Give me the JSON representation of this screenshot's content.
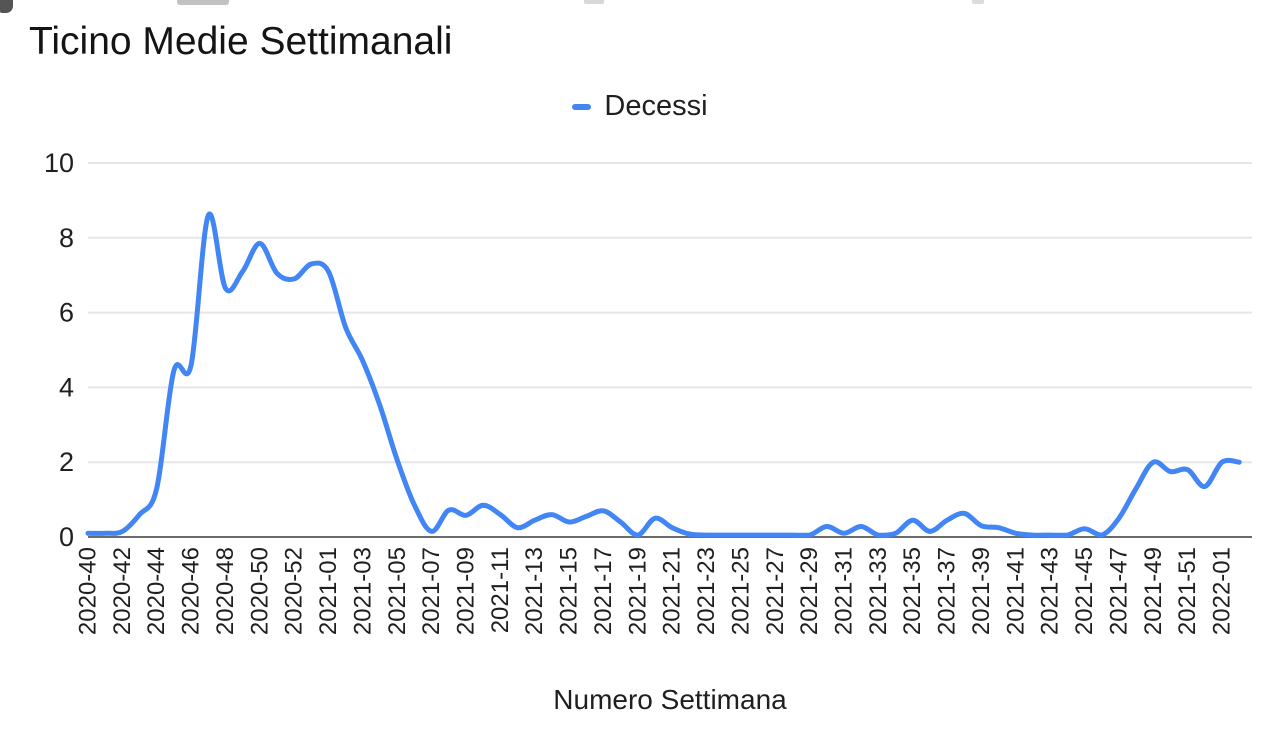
{
  "page": {
    "title": "Ticino Medie Settimanali",
    "legend": {
      "label": "Decessi",
      "color": "#4285f4"
    },
    "x_axis_title": "Numero Settimana"
  },
  "chart_data": {
    "type": "line",
    "smooth": true,
    "title": "Ticino Medie Settimanali",
    "xlabel": "Numero Settimana",
    "ylabel": "",
    "ylim": [
      0,
      10
    ],
    "yticks": [
      0,
      2,
      4,
      6,
      8,
      10
    ],
    "grid": "horizontal",
    "legend_position": "top",
    "line_color": "#4285f4",
    "grid_color": "#e6e6e6",
    "axis_line_color": "#6b6b6b",
    "label_color": "#1f1f1f",
    "x": [
      "2020-40",
      "2020-41",
      "2020-42",
      "2020-43",
      "2020-44",
      "2020-45",
      "2020-46",
      "2020-47",
      "2020-48",
      "2020-49",
      "2020-50",
      "2020-51",
      "2020-52",
      "2020-53",
      "2021-01",
      "2021-02",
      "2021-03",
      "2021-04",
      "2021-05",
      "2021-06",
      "2021-07",
      "2021-08",
      "2021-09",
      "2021-10",
      "2021-11",
      "2021-12",
      "2021-13",
      "2021-14",
      "2021-15",
      "2021-16",
      "2021-17",
      "2021-18",
      "2021-19",
      "2021-20",
      "2021-21",
      "2021-22",
      "2021-23",
      "2021-24",
      "2021-25",
      "2021-26",
      "2021-27",
      "2021-28",
      "2021-29",
      "2021-30",
      "2021-31",
      "2021-32",
      "2021-33",
      "2021-34",
      "2021-35",
      "2021-36",
      "2021-37",
      "2021-38",
      "2021-39",
      "2021-40",
      "2021-41",
      "2021-42",
      "2021-43",
      "2021-44",
      "2021-45",
      "2021-46",
      "2021-47",
      "2021-48",
      "2021-49",
      "2021-50",
      "2021-51",
      "2021-52",
      "2022-01",
      "2022-02"
    ],
    "x_tick_labels": [
      "2020-40",
      "2020-42",
      "2020-44",
      "2020-46",
      "2020-48",
      "2020-50",
      "2020-52",
      "2021-01",
      "2021-03",
      "2021-05",
      "2021-07",
      "2021-09",
      "2021-11",
      "2021-13",
      "2021-15",
      "2021-17",
      "2021-19",
      "2021-21",
      "2021-23",
      "2021-25",
      "2021-27",
      "2021-29",
      "2021-31",
      "2021-33",
      "2021-35",
      "2021-37",
      "2021-39",
      "2021-41",
      "2021-43",
      "2021-45",
      "2021-47",
      "2021-49",
      "2021-51",
      "2022-01"
    ],
    "series": [
      {
        "name": "Decessi",
        "color": "#4285f4",
        "values": [
          0.1,
          0.1,
          0.15,
          0.6,
          1.3,
          4.45,
          4.6,
          8.6,
          6.65,
          7.1,
          7.85,
          7.05,
          6.9,
          7.3,
          7.1,
          5.6,
          4.7,
          3.5,
          2.05,
          0.85,
          0.15,
          0.72,
          0.58,
          0.85,
          0.6,
          0.25,
          0.45,
          0.6,
          0.4,
          0.55,
          0.7,
          0.4,
          0.05,
          0.5,
          0.25,
          0.08,
          0.05,
          0.05,
          0.05,
          0.05,
          0.05,
          0.05,
          0.05,
          0.28,
          0.1,
          0.28,
          0.05,
          0.1,
          0.45,
          0.15,
          0.45,
          0.63,
          0.3,
          0.25,
          0.1,
          0.05,
          0.05,
          0.05,
          0.22,
          0.05,
          0.5,
          1.3,
          2.0,
          1.75,
          1.8,
          1.35,
          2.0,
          2.0
        ]
      }
    ]
  }
}
